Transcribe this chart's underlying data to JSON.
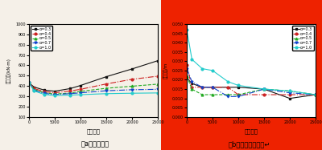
{
  "x": [
    0,
    1000,
    3000,
    5000,
    8000,
    10000,
    15000,
    20000,
    25000
  ],
  "left": {
    "ylabel": "塔底弯矩(kN·m)",
    "xlabel": "阻尼系数",
    "caption": "（a）塔底弯矩",
    "ylim": [
      100,
      1000
    ],
    "yticks": [
      100,
      200,
      300,
      400,
      500,
      600,
      700,
      800,
      900,
      1000
    ],
    "series": {
      "alpha_0.3": [
        430,
        390,
        360,
        350,
        375,
        405,
        490,
        565,
        645
      ],
      "alpha_0.4": [
        430,
        375,
        345,
        335,
        352,
        368,
        420,
        465,
        495
      ],
      "alpha_0.5": [
        430,
        365,
        335,
        322,
        332,
        348,
        378,
        398,
        418
      ],
      "alpha_0.7": [
        430,
        358,
        328,
        318,
        326,
        334,
        354,
        364,
        368
      ],
      "alpha_1.0": [
        430,
        352,
        318,
        308,
        312,
        316,
        326,
        330,
        333
      ]
    }
  },
  "right": {
    "ylabel": "梁端位移/m",
    "xlabel": "阻尼系数",
    "caption": "（b）梁端纵向位移↵",
    "ylim": [
      0.0,
      0.05
    ],
    "yticks": [
      0.0,
      0.005,
      0.01,
      0.015,
      0.02,
      0.025,
      0.03,
      0.035,
      0.04,
      0.045,
      0.05
    ],
    "series": {
      "alpha_0.3": [
        0.021,
        0.018,
        0.016,
        0.016,
        0.016,
        0.016,
        0.015,
        0.01,
        0.012
      ],
      "alpha_0.4": [
        0.028,
        0.016,
        0.016,
        0.016,
        0.016,
        0.012,
        0.012,
        0.012,
        0.012
      ],
      "alpha_0.5": [
        0.022,
        0.015,
        0.012,
        0.012,
        0.012,
        0.012,
        0.015,
        0.014,
        0.012
      ],
      "alpha_0.7": [
        0.026,
        0.019,
        0.016,
        0.016,
        0.011,
        0.011,
        0.015,
        0.013,
        0.012
      ],
      "alpha_1.0": [
        0.047,
        0.031,
        0.026,
        0.025,
        0.019,
        0.017,
        0.015,
        0.014,
        0.012
      ]
    },
    "bg_color": "#EE2200"
  },
  "colors": {
    "alpha_0.3": "#111111",
    "alpha_0.4": "#CC2222",
    "alpha_0.5": "#22AA22",
    "alpha_0.7": "#1144CC",
    "alpha_1.0": "#22CCCC"
  },
  "markers": {
    "alpha_0.3": "s",
    "alpha_0.4": "o",
    "alpha_0.5": "^",
    "alpha_0.7": "v",
    "alpha_1.0": "o"
  },
  "linestyles": {
    "alpha_0.3": "-",
    "alpha_0.4": "-.",
    "alpha_0.5": "--",
    "alpha_0.7": "-.",
    "alpha_1.0": "-"
  },
  "legend_labels": [
    "α=0.3",
    "α=0.4",
    "α=0.5",
    "α=0.7",
    "α=1.0"
  ],
  "legend_keys": [
    "alpha_0.3",
    "alpha_0.4",
    "alpha_0.5",
    "alpha_0.7",
    "alpha_1.0"
  ],
  "left_bg": "#F5F0E8",
  "fig_bg": "#F5F0E8"
}
